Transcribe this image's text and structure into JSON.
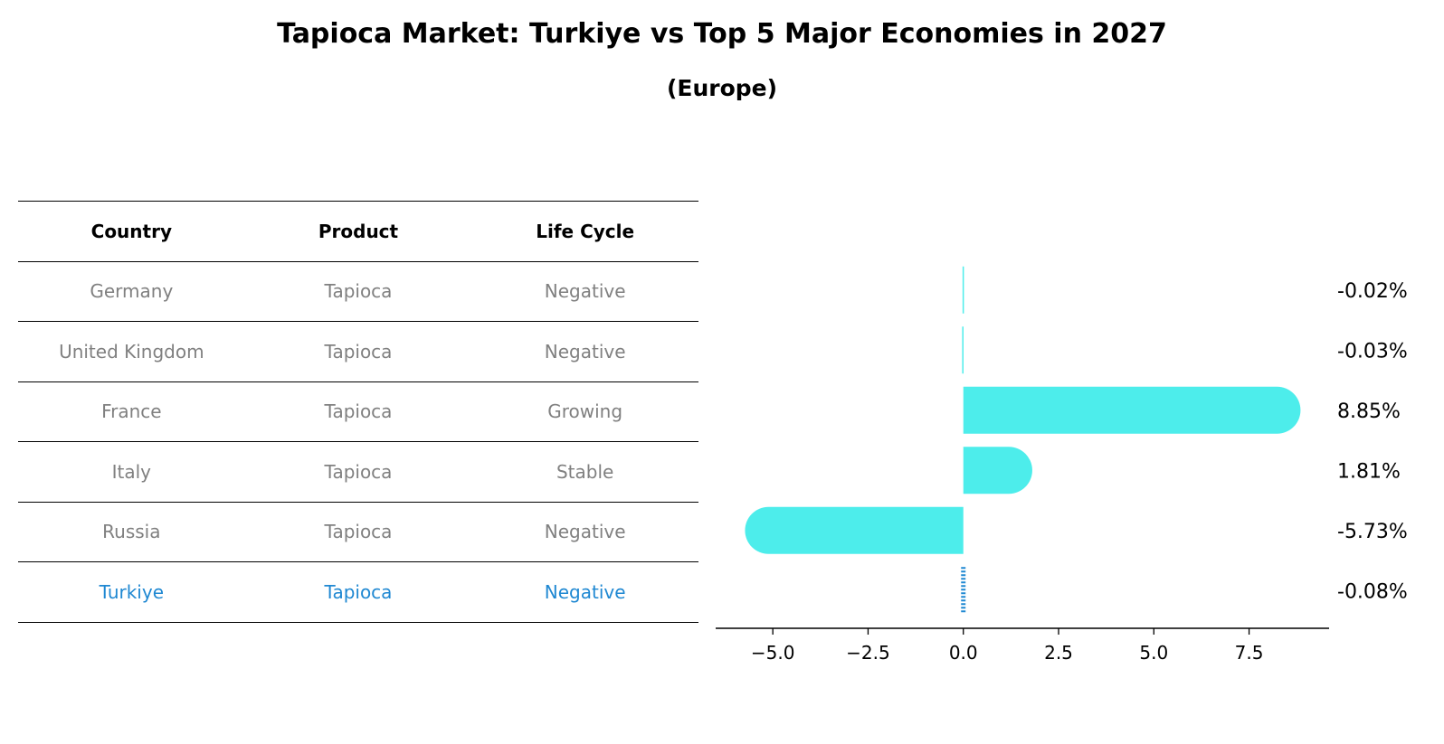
{
  "title": "Tapioca Market: Turkiye vs Top 5 Major Economies in 2027",
  "subtitle": "(Europe)",
  "colors": {
    "bar": "#4dedeb",
    "highlight_text": "#1f88d2",
    "highlight_bar": "#1f88d2",
    "muted_text": "#808080"
  },
  "table": {
    "headers": [
      "Country",
      "Product",
      "Life Cycle"
    ],
    "rows": [
      {
        "country": "Germany",
        "product": "Tapioca",
        "life_cycle": "Negative"
      },
      {
        "country": "United Kingdom",
        "product": "Tapioca",
        "life_cycle": "Negative"
      },
      {
        "country": "France",
        "product": "Tapioca",
        "life_cycle": "Growing"
      },
      {
        "country": "Italy",
        "product": "Tapioca",
        "life_cycle": "Stable"
      },
      {
        "country": "Russia",
        "product": "Tapioca",
        "life_cycle": "Negative"
      },
      {
        "country": "Turkiye",
        "product": "Tapioca",
        "life_cycle": "Negative"
      }
    ],
    "highlight_row": "Turkiye"
  },
  "chart_data": {
    "type": "bar",
    "orientation": "horizontal",
    "categories": [
      "Germany",
      "United Kingdom",
      "France",
      "Italy",
      "Russia",
      "Turkiye"
    ],
    "values": [
      -0.02,
      -0.03,
      8.85,
      1.81,
      -5.73,
      -0.08
    ],
    "value_labels": [
      "-0.02%",
      "-0.03%",
      "8.85%",
      "1.81%",
      "-5.73%",
      "-0.08%"
    ],
    "highlight": "Turkiye",
    "xlim": [
      -6.5,
      9.6
    ],
    "xticks": [
      -5.0,
      -2.5,
      0.0,
      2.5,
      5.0,
      7.5
    ],
    "xtick_labels": [
      "−5.0",
      "−2.5",
      "0.0",
      "2.5",
      "5.0",
      "7.5"
    ],
    "xlabel": "",
    "ylabel": "",
    "grid": false,
    "legend": "none"
  }
}
